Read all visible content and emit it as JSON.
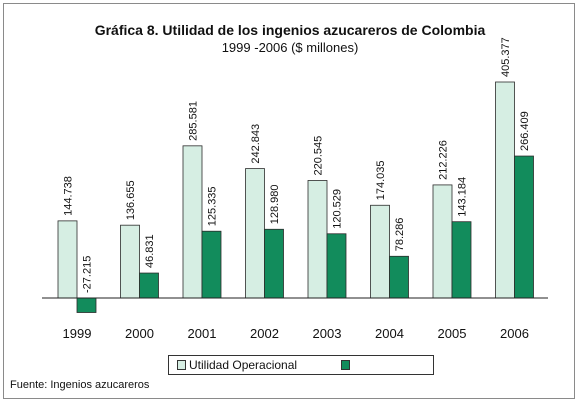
{
  "chart_data": {
    "type": "bar",
    "title": "Gráfica 8. Utilidad de los ingenios azucareros de Colombia",
    "subtitle": "1999 -2006 ($ millones)",
    "categories": [
      "1999",
      "2000",
      "2001",
      "2002",
      "2003",
      "2004",
      "2005",
      "2006"
    ],
    "series": [
      {
        "name": "Utilidad Operacional",
        "values": [
          144.738,
          136.655,
          285.581,
          242.843,
          220.545,
          174.035,
          212.226,
          405.377
        ],
        "labels": [
          "144.738",
          "136.655",
          "285.581",
          "242.843",
          "220.545",
          "174.035",
          "212.226",
          "405.377"
        ],
        "color": "#d6eee3"
      },
      {
        "name": "",
        "values": [
          -27.215,
          46.831,
          125.335,
          128.98,
          120.529,
          78.286,
          143.184,
          266.409
        ],
        "labels": [
          "-27.215",
          "46.831",
          "125.335",
          "128.980",
          "120.529",
          "78.286",
          "143.184",
          "266.409"
        ],
        "color": "#128c5c"
      }
    ],
    "grid": false,
    "legend_position": "bottom",
    "source": "Fuente: Ingenios azucareros"
  }
}
